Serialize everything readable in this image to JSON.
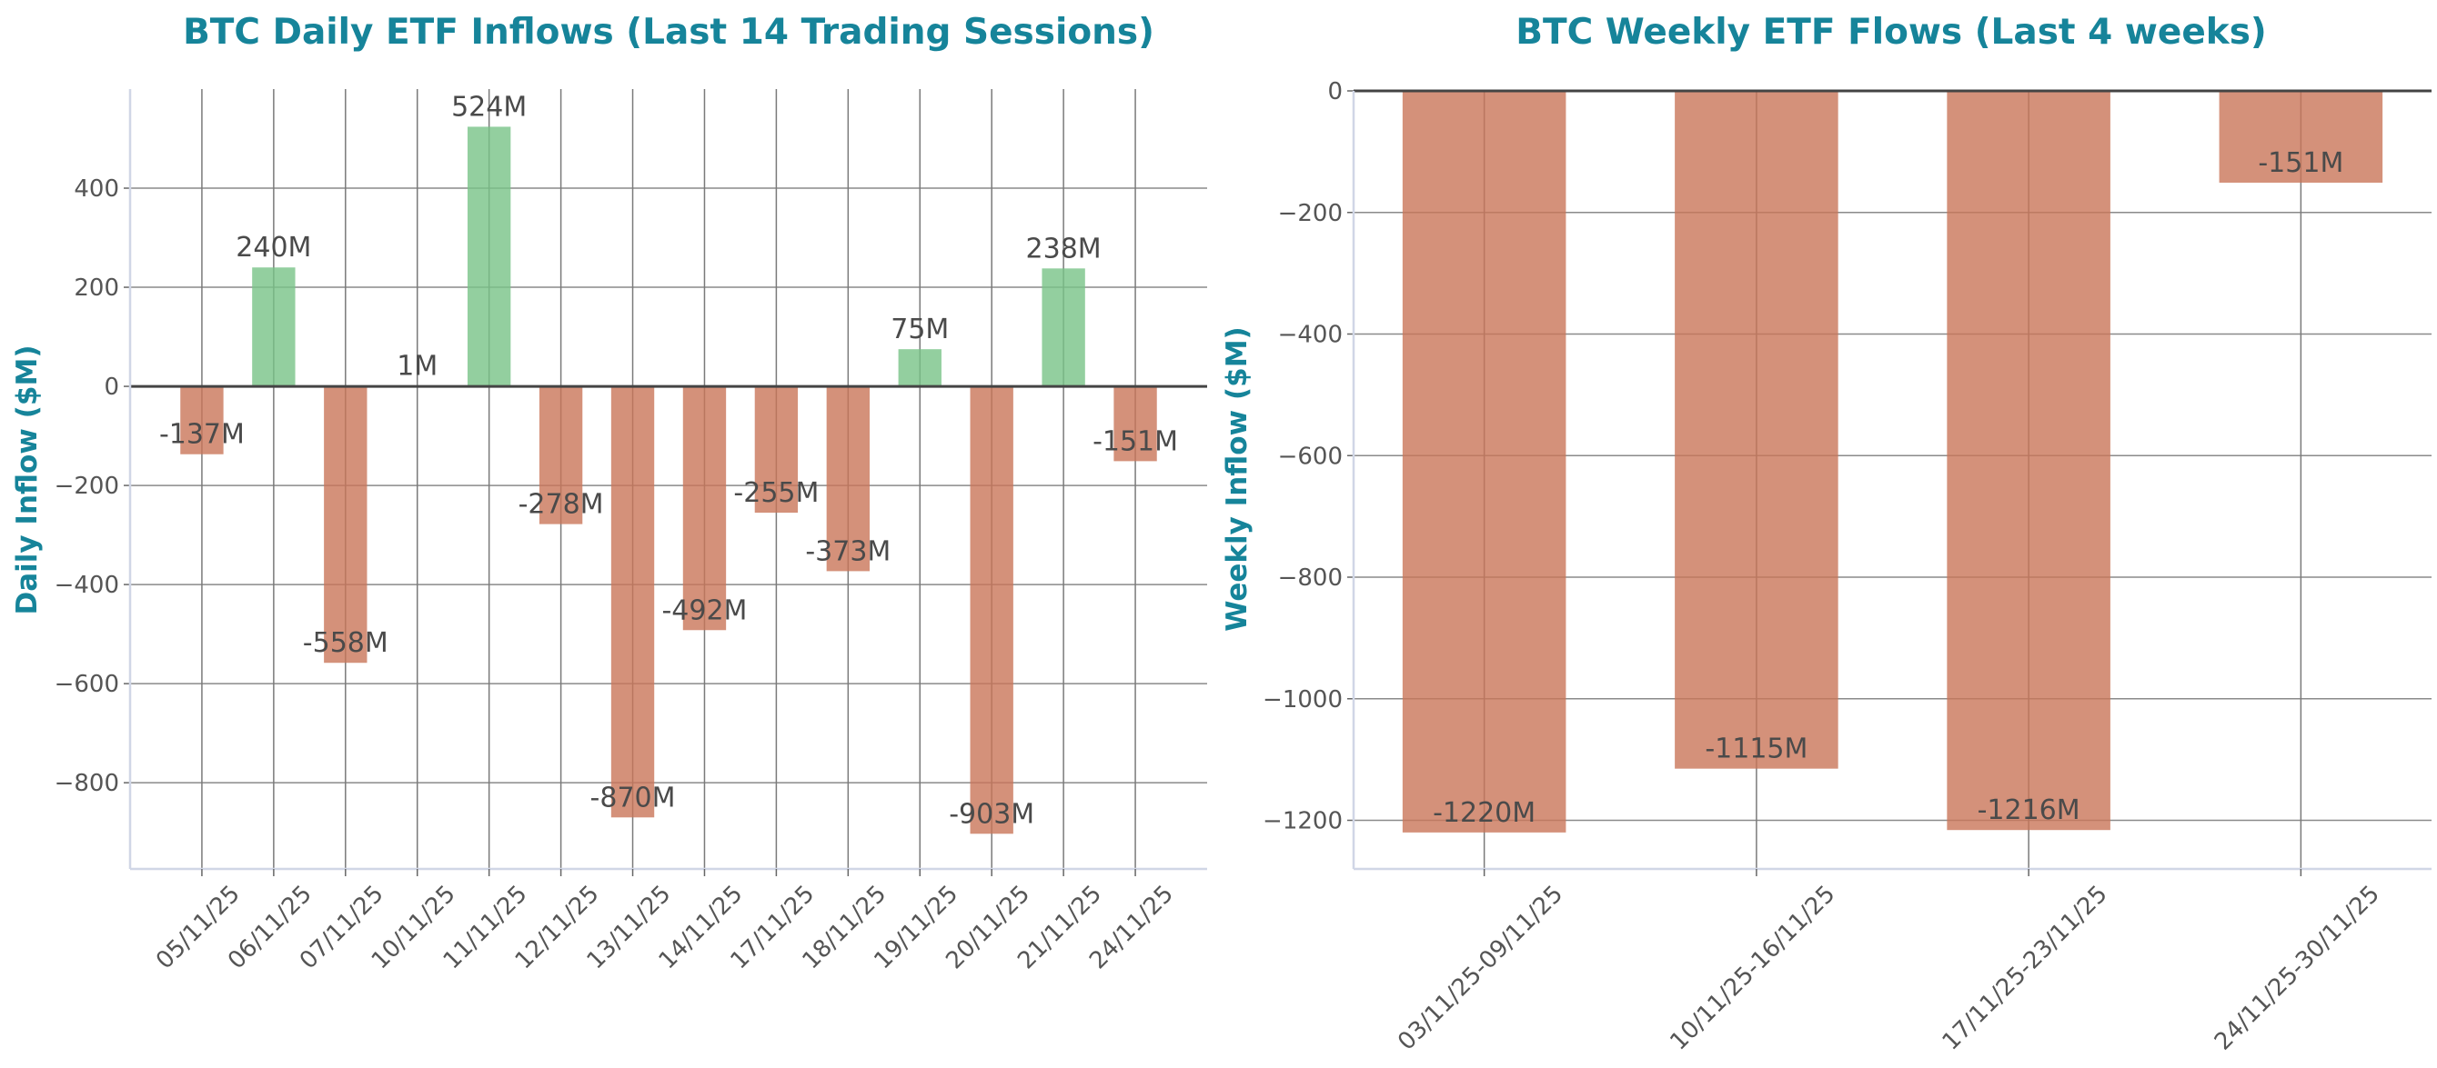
{
  "chart_data": [
    {
      "type": "bar",
      "title": "BTC Daily ETF Inflows (Last 14 Trading Sessions)",
      "xlabel": "",
      "ylabel": "Daily Inflow ($M)",
      "categories": [
        "05/11/25",
        "06/11/25",
        "07/11/25",
        "10/11/25",
        "11/11/25",
        "12/11/25",
        "13/11/25",
        "14/11/25",
        "17/11/25",
        "18/11/25",
        "19/11/25",
        "20/11/25",
        "21/11/25",
        "24/11/25"
      ],
      "values": [
        -137,
        240,
        -558,
        1,
        524,
        -278,
        -870,
        -492,
        -255,
        -373,
        75,
        -903,
        238,
        -151
      ],
      "data_labels": [
        "-137M",
        "240M",
        "-558M",
        "1M",
        "524M",
        "-278M",
        "-870M",
        "-492M",
        "-255M",
        "-373M",
        "75M",
        "-903M",
        "238M",
        "-151M"
      ],
      "ylim": [
        -974,
        600
      ],
      "yticks": [
        -800,
        -600,
        -400,
        -200,
        0,
        200,
        400
      ],
      "ytick_labels": [
        "−800",
        "−600",
        "−400",
        "−200",
        "0",
        "200",
        "400"
      ],
      "grid": true,
      "colors": {
        "positive": "#93cf9f",
        "negative": "#d4917b",
        "title": "#16849a"
      }
    },
    {
      "type": "bar",
      "title": "BTC Weekly ETF Flows (Last 4 weeks)",
      "xlabel": "",
      "ylabel": "Weekly Inflow ($M)",
      "categories": [
        "03/11/25-09/11/25",
        "10/11/25-16/11/25",
        "17/11/25-23/11/25",
        "24/11/25-30/11/25"
      ],
      "values": [
        -1220,
        -1115,
        -1216,
        -151
      ],
      "data_labels": [
        "-1220M",
        "-1115M",
        "-1216M",
        "-151M"
      ],
      "ylim": [
        -1280,
        0
      ],
      "yticks": [
        -1200,
        -1000,
        -800,
        -600,
        -400,
        -200,
        0
      ],
      "ytick_labels": [
        "−1200",
        "−1000",
        "−800",
        "−600",
        "−400",
        "−200",
        "0"
      ],
      "grid": true,
      "colors": {
        "positive": "#93cf9f",
        "negative": "#d4917b",
        "title": "#16849a"
      }
    }
  ]
}
